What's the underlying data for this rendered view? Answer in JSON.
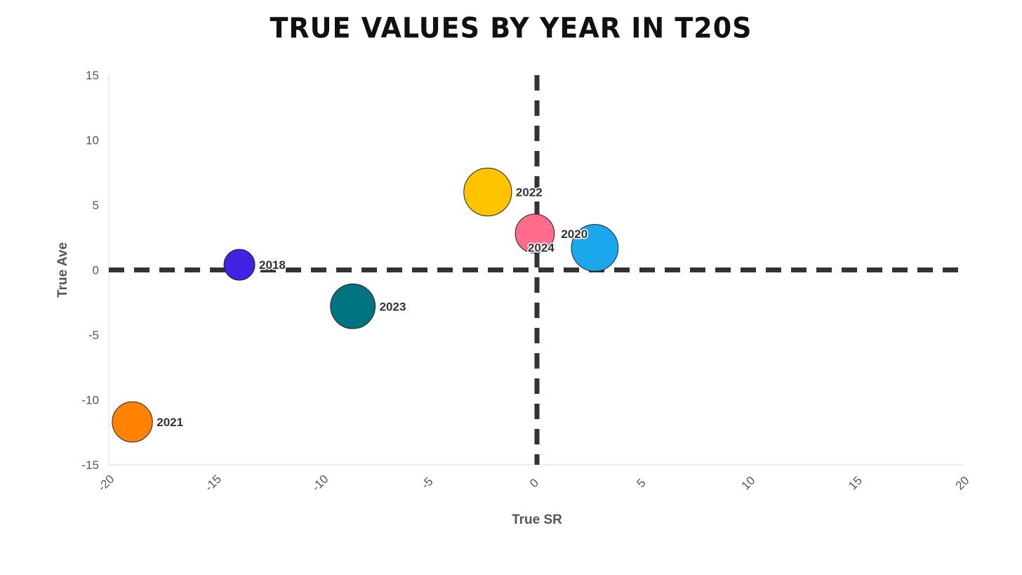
{
  "chart_data": {
    "type": "scatter",
    "title": "TRUE VALUES BY YEAR IN T20S",
    "xlabel": "True SR",
    "ylabel": "True Ave",
    "xlim": [
      -20,
      20
    ],
    "ylim": [
      -15,
      15
    ],
    "xticks": [
      -20,
      -15,
      -10,
      -5,
      0,
      5,
      10,
      15,
      20
    ],
    "yticks": [
      -15,
      -10,
      -5,
      0,
      5,
      10,
      15
    ],
    "grid": false,
    "reference_lines": [
      {
        "axis": "x",
        "value": 0,
        "style": "dashed",
        "color": "#333333"
      },
      {
        "axis": "y",
        "value": 0,
        "style": "dashed",
        "color": "#333333"
      }
    ],
    "points": [
      {
        "label": "2018",
        "x": -13.9,
        "y": 0.4,
        "size": 1.0,
        "color": "#4422e3"
      },
      {
        "label": "2020",
        "x": 2.7,
        "y": 1.7,
        "size": 2.3,
        "color": "#1aa7ec"
      },
      {
        "label": "2021",
        "x": -18.9,
        "y": -11.7,
        "size": 1.7,
        "color": "#ff8300"
      },
      {
        "label": "2022",
        "x": -2.3,
        "y": 6.0,
        "size": 2.4,
        "color": "#ffc300"
      },
      {
        "label": "2023",
        "x": -8.6,
        "y": -2.8,
        "size": 2.1,
        "color": "#007380"
      },
      {
        "label": "2024",
        "x": -0.1,
        "y": 2.8,
        "size": 1.6,
        "color": "#ff6b8b"
      }
    ]
  }
}
